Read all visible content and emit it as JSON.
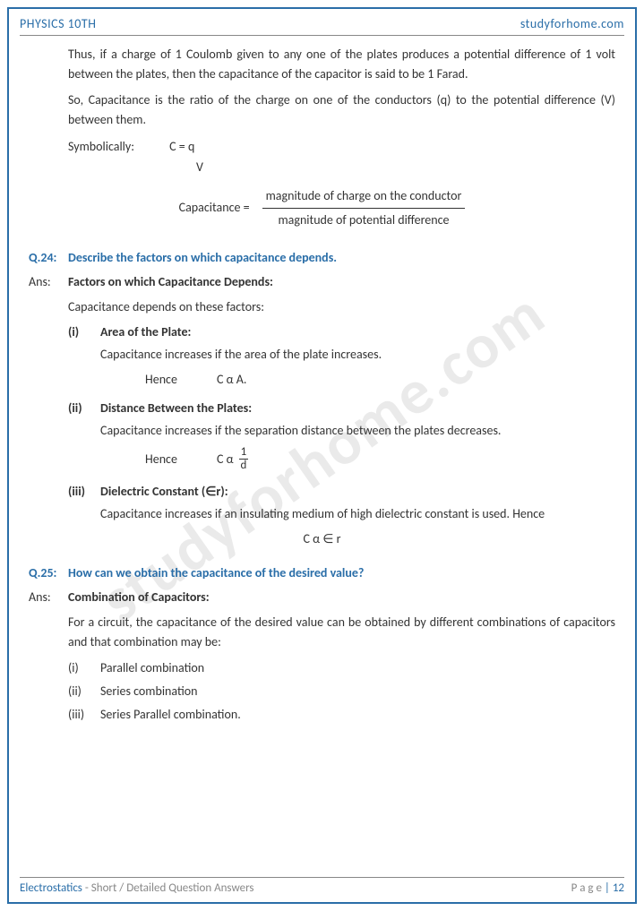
{
  "header": {
    "left": "PHYSICS 10TH",
    "right": "studyforhome.com"
  },
  "footer": {
    "topic": "Electrostatics",
    "sub": " - Short / Detailed Question Answers",
    "page_label": "P a g e",
    "page_num": "| 12"
  },
  "watermark": "studyforhome.com",
  "intro": {
    "p1": "Thus, if a charge of 1 Coulomb given to any one of the plates produces a potential difference of 1 volt between the plates, then the capacitance of the capacitor is said to be 1 Farad.",
    "p2": "So, Capacitance is the ratio of the charge on one of the conductors (q) to the potential difference (V) between them.",
    "sym_label": "Symbolically:",
    "sym_eq": "C = q",
    "sym_v": "V",
    "cap_lhs": "Capacitance   =",
    "cap_num": "magnitude of charge on the conductor",
    "cap_den": "magnitude of potential difference"
  },
  "q24": {
    "num": "Q.24:",
    "text": "Describe the factors on which capacitance depends.",
    "ans_label": "Ans:",
    "heading": "Factors on which Capacitance Depends:",
    "intro": "Capacitance depends on these factors:",
    "factors": [
      {
        "roman": "(i)",
        "title": "Area of the Plate:",
        "body": "Capacitance increases if the area of the plate increases.",
        "hence_label": "Hence",
        "relation": "C α A."
      },
      {
        "roman": "(ii)",
        "title": "Distance Between the Plates:",
        "body": "Capacitance increases if the separation distance between the plates decreases.",
        "hence_label": "Hence",
        "relation_pre": "C  α",
        "frac_num": "1",
        "frac_den": "d"
      },
      {
        "roman": "(iii)",
        "title": "Dielectric Constant (∈r):",
        "body": "Capacitance increases if an insulating medium of high dielectric constant is used. Hence",
        "center_relation": "C  α  ∈ r"
      }
    ]
  },
  "q25": {
    "num": "Q.25:",
    "text": "How can we obtain the capacitance of the desired value?",
    "ans_label": "Ans:",
    "heading": "Combination of Capacitors:",
    "body": "For a circuit, the capacitance of the desired value can be obtained by different combinations of capacitors and that combination may be:",
    "items": [
      {
        "roman": "(i)",
        "text": "Parallel combination"
      },
      {
        "roman": "(ii)",
        "text": "Series combination"
      },
      {
        "roman": "(iii)",
        "text": "Series Parallel combination."
      }
    ]
  },
  "colors": {
    "accent": "#2a6ea8",
    "text": "#333333",
    "muted": "#888888",
    "background": "#ffffff"
  },
  "typography": {
    "body_fontsize_pt": 11,
    "heading_color": "#2a6ea8",
    "font_family": "Calibri"
  }
}
